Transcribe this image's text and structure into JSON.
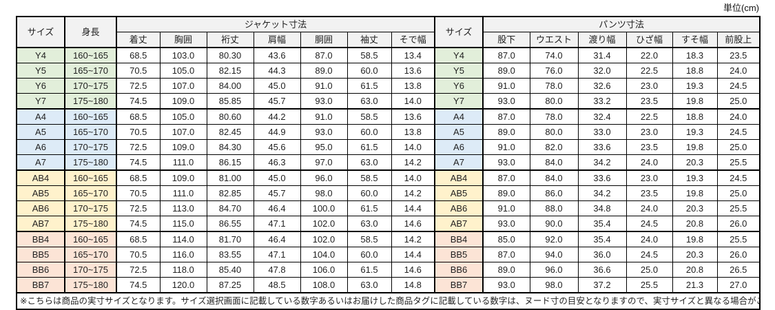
{
  "unit_label": "単位(cm)",
  "colors": {
    "header_bg": "#F2F2F2",
    "group_y": "#E2EFDA",
    "group_a": "#DDEBF7",
    "group_ab": "#FFF2CC",
    "group_bb": "#FCE4D6",
    "border": "#000000",
    "text": "#1F1F1F"
  },
  "table": {
    "header": {
      "size": "サイズ",
      "height": "身長",
      "jacket_group": "ジャケット寸法",
      "jacket_columns": [
        "着丈",
        "胸囲",
        "裄丈",
        "肩幅",
        "胴囲",
        "袖丈",
        "そで幅"
      ],
      "size2": "サイズ",
      "pants_group": "パンツ寸法",
      "pants_columns": [
        "股下",
        "ウエスト",
        "渡り幅",
        "ひざ幅",
        "すそ幅",
        "前股上"
      ]
    },
    "rows": [
      {
        "size": "Y4",
        "group": "y",
        "height": "160~165",
        "jacket": [
          "68.5",
          "103.0",
          "80.30",
          "43.6",
          "87.0",
          "58.5",
          "13.4"
        ],
        "pants": [
          "87.0",
          "74.0",
          "31.4",
          "22.0",
          "18.3",
          "23.5"
        ]
      },
      {
        "size": "Y5",
        "group": "y",
        "height": "165~170",
        "jacket": [
          "70.5",
          "105.0",
          "82.15",
          "44.3",
          "89.0",
          "60.0",
          "13.6"
        ],
        "pants": [
          "89.0",
          "76.0",
          "32.0",
          "22.5",
          "18.8",
          "24.0"
        ]
      },
      {
        "size": "Y6",
        "group": "y",
        "height": "170~175",
        "jacket": [
          "72.5",
          "107.0",
          "84.00",
          "45.0",
          "91.0",
          "61.5",
          "13.8"
        ],
        "pants": [
          "91.0",
          "78.0",
          "32.6",
          "23.0",
          "19.3",
          "24.5"
        ]
      },
      {
        "size": "Y7",
        "group": "y",
        "height": "175~180",
        "jacket": [
          "74.5",
          "109.0",
          "85.85",
          "45.7",
          "93.0",
          "63.0",
          "14.0"
        ],
        "pants": [
          "93.0",
          "80.0",
          "33.2",
          "23.5",
          "19.8",
          "25.0"
        ]
      },
      {
        "size": "A4",
        "group": "a",
        "height": "160~165",
        "jacket": [
          "68.5",
          "105.0",
          "80.60",
          "44.2",
          "91.0",
          "58.5",
          "13.6"
        ],
        "pants": [
          "87.0",
          "78.0",
          "32.4",
          "22.5",
          "18.8",
          "24.0"
        ]
      },
      {
        "size": "A5",
        "group": "a",
        "height": "165~170",
        "jacket": [
          "70.5",
          "107.0",
          "82.45",
          "44.9",
          "93.0",
          "60.0",
          "13.8"
        ],
        "pants": [
          "89.0",
          "80.0",
          "33.0",
          "23.0",
          "19.3",
          "24.5"
        ]
      },
      {
        "size": "A6",
        "group": "a",
        "height": "170~175",
        "jacket": [
          "72.5",
          "109.0",
          "84.30",
          "45.6",
          "95.0",
          "61.5",
          "14.0"
        ],
        "pants": [
          "91.0",
          "82.0",
          "33.6",
          "23.5",
          "19.8",
          "25.0"
        ]
      },
      {
        "size": "A7",
        "group": "a",
        "height": "175~180",
        "jacket": [
          "74.5",
          "111.0",
          "86.15",
          "46.3",
          "97.0",
          "63.0",
          "14.2"
        ],
        "pants": [
          "93.0",
          "84.0",
          "34.2",
          "24.0",
          "20.3",
          "25.5"
        ]
      },
      {
        "size": "AB4",
        "group": "ab",
        "height": "160~165",
        "jacket": [
          "68.5",
          "109.0",
          "81.00",
          "45.0",
          "96.0",
          "58.5",
          "14.0"
        ],
        "pants": [
          "87.0",
          "84.0",
          "33.6",
          "23.0",
          "19.3",
          "24.5"
        ]
      },
      {
        "size": "AB5",
        "group": "ab",
        "height": "165~170",
        "jacket": [
          "70.5",
          "111.0",
          "82.85",
          "45.7",
          "98.0",
          "60.0",
          "14.2"
        ],
        "pants": [
          "89.0",
          "86.0",
          "34.2",
          "23.5",
          "19.8",
          "25.0"
        ]
      },
      {
        "size": "AB6",
        "group": "ab",
        "height": "170~175",
        "jacket": [
          "72.5",
          "113.0",
          "84.70",
          "46.4",
          "100.0",
          "61.5",
          "14.4"
        ],
        "pants": [
          "91.0",
          "88.0",
          "34.8",
          "24.0",
          "20.3",
          "25.5"
        ]
      },
      {
        "size": "AB7",
        "group": "ab",
        "height": "175~180",
        "jacket": [
          "74.5",
          "115.0",
          "86.55",
          "47.1",
          "102.0",
          "63.0",
          "14.6"
        ],
        "pants": [
          "93.0",
          "90.0",
          "35.4",
          "24.5",
          "20.8",
          "26.0"
        ]
      },
      {
        "size": "BB4",
        "group": "bb",
        "height": "160~165",
        "jacket": [
          "68.5",
          "114.0",
          "81.70",
          "46.4",
          "102.0",
          "58.5",
          "14.2"
        ],
        "pants": [
          "85.0",
          "92.0",
          "35.4",
          "24.0",
          "19.8",
          "25.5"
        ]
      },
      {
        "size": "BB5",
        "group": "bb",
        "height": "165~170",
        "jacket": [
          "70.5",
          "116.0",
          "83.55",
          "47.1",
          "104.0",
          "60.0",
          "14.4"
        ],
        "pants": [
          "87.0",
          "94.0",
          "36.0",
          "24.5",
          "20.3",
          "26.0"
        ]
      },
      {
        "size": "BB6",
        "group": "bb",
        "height": "170~175",
        "jacket": [
          "72.5",
          "118.0",
          "85.40",
          "47.8",
          "106.0",
          "61.5",
          "14.6"
        ],
        "pants": [
          "89.0",
          "96.0",
          "36.6",
          "25.0",
          "20.8",
          "26.5"
        ]
      },
      {
        "size": "BB7",
        "group": "bb",
        "height": "175~180",
        "jacket": [
          "74.5",
          "120.0",
          "87.25",
          "48.5",
          "108.0",
          "63.0",
          "14.8"
        ],
        "pants": [
          "93.0",
          "98.0",
          "37.2",
          "25.5",
          "21.3",
          "27.0"
        ]
      }
    ]
  },
  "footnote": "※こちらは商品の実寸サイズとなります。サイズ選択画面に記載している数字あるいはお届けした商品タグに記載している数字は、ヌード寸の目安となりますので、実寸サイズと異なる場合がございます。"
}
